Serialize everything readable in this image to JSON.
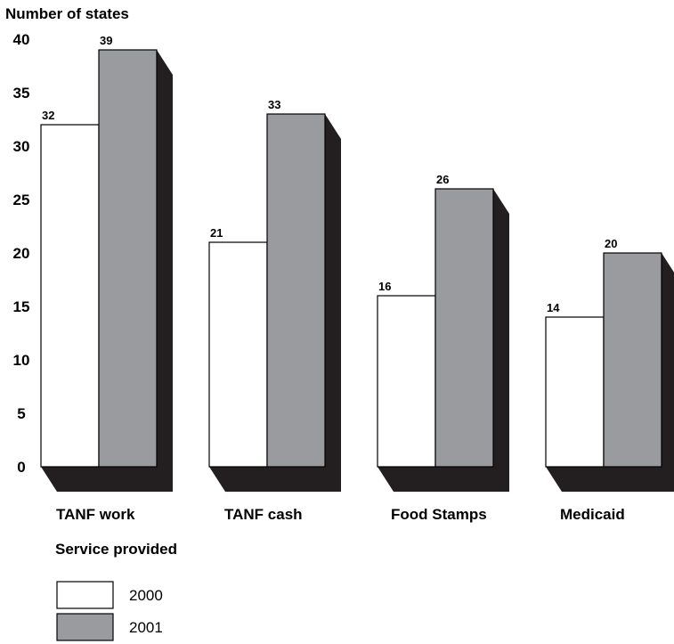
{
  "chart_data": {
    "type": "bar",
    "title": "",
    "ylabel": "Number of states",
    "xlabel": "Service provided",
    "ylim": [
      0,
      40
    ],
    "yticks": [
      0,
      5,
      10,
      15,
      20,
      25,
      30,
      35,
      40
    ],
    "categories": [
      "TANF work",
      "TANF cash",
      "Food Stamps",
      "Medicaid"
    ],
    "series": [
      {
        "name": "2000",
        "values": [
          32,
          21,
          16,
          14
        ],
        "color": "#ffffff"
      },
      {
        "name": "2001",
        "values": [
          39,
          33,
          26,
          20
        ],
        "color": "#9a9b9f"
      }
    ],
    "shadow_color": "#231f20",
    "grid": false,
    "legend_position": "bottom-left",
    "bar_style": "3d-shadow"
  }
}
